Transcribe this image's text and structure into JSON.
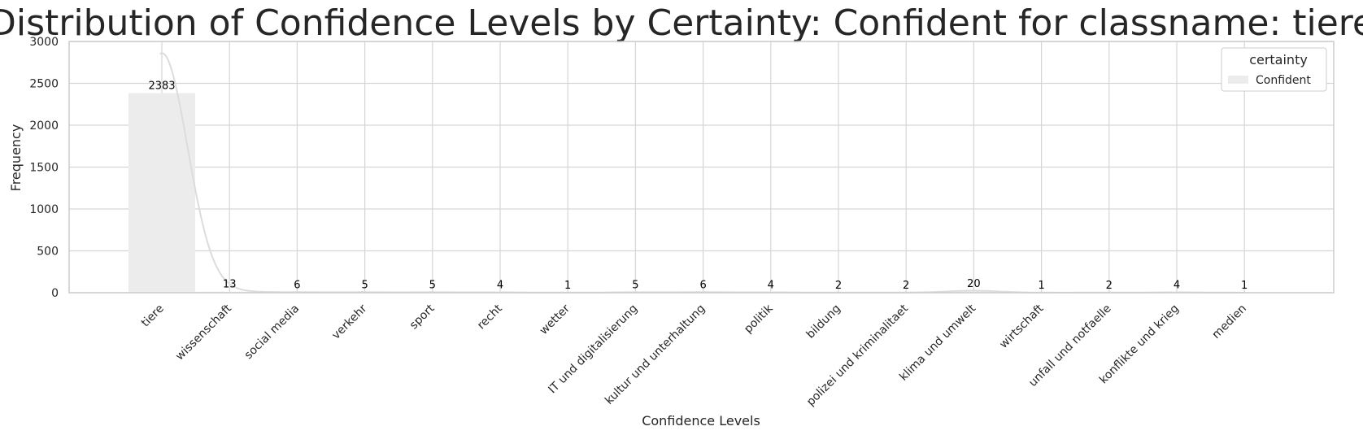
{
  "chart_data": {
    "type": "bar",
    "title": "Distribution of Confidence Levels by Certainty: Confident for classname: tiere",
    "xlabel": "Confidence Levels",
    "ylabel": "Frequency",
    "categories": [
      "tiere",
      "wissenschaft",
      "social media",
      "verkehr",
      "sport",
      "recht",
      "wetter",
      "IT und digitalisierung",
      "kultur und unterhaltung",
      "politik",
      "bildung",
      "polizei und kriminalitaet",
      "klima und umwelt",
      "wirtschaft",
      "unfall und notfaelle",
      "konflikte und krieg",
      "medien"
    ],
    "series": [
      {
        "name": "Confident",
        "values": [
          2383,
          13,
          6,
          5,
          5,
          4,
          1,
          5,
          6,
          4,
          2,
          2,
          20,
          1,
          2,
          4,
          1
        ]
      }
    ],
    "value_labels": [
      "2383",
      "13",
      "6",
      "5",
      "5",
      "4",
      "1",
      "5",
      "6",
      "4",
      "2",
      "2",
      "20",
      "1",
      "2",
      "4",
      "1"
    ],
    "yticks": [
      0,
      500,
      1000,
      1500,
      2000,
      2500,
      3000
    ],
    "ylim": [
      0,
      3000
    ],
    "grid": true,
    "kde_overlay": true,
    "legend": {
      "title": "certainty",
      "placement": "top-right",
      "entries": [
        "Confident"
      ]
    },
    "colors": {
      "bar": "#ececec",
      "kde": "#dcdcdc",
      "grid": "#d5d5d5",
      "spine": "#cccccc"
    }
  }
}
